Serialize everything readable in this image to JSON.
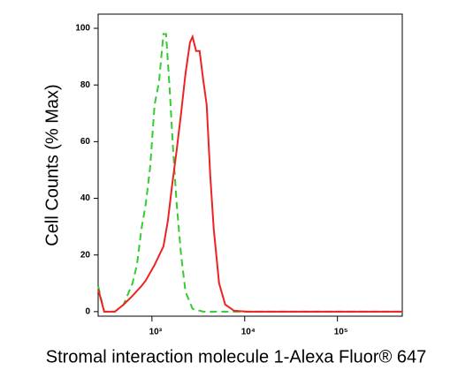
{
  "chart_data": {
    "type": "line",
    "x_label": "Stromal interaction molecule 1-Alexa Fluor® 647",
    "y_label": "Cell Counts (% Max)",
    "xscale": "log",
    "xlim": [
      263,
      500000
    ],
    "ylim": [
      -1.6,
      105
    ],
    "xticks": [
      {
        "value": 1000,
        "label": "10³"
      },
      {
        "value": 10000,
        "label": "10⁴"
      },
      {
        "value": 100000,
        "label": "10⁵"
      }
    ],
    "yticks": [
      0,
      20,
      40,
      60,
      80,
      100
    ],
    "series": [
      {
        "color": "#33cc33",
        "dash": "8,5",
        "x": [
          263,
          306,
          398,
          495,
          617,
          689,
          769,
          858,
          957,
          1068,
          1192,
          1330,
          1420,
          1550,
          1693,
          1848,
          2062,
          2301,
          2742,
          3565,
          10690,
          500000
        ],
        "values": [
          9,
          0,
          0,
          2.5,
          10,
          16.5,
          29,
          38,
          51,
          73,
          81,
          98,
          98,
          79,
          57,
          38,
          20,
          7,
          1,
          0,
          0,
          0
        ]
      },
      {
        "color": "#ee2222",
        "dash": null,
        "x": [
          263,
          306,
          398,
          495,
          617,
          769,
          858,
          1068,
          1330,
          1484,
          1656,
          1848,
          2062,
          2301,
          2570,
          2742,
          2993,
          3266,
          3565,
          3891,
          4253,
          4642,
          5297,
          6166,
          7691,
          10690,
          500000
        ],
        "values": [
          8,
          0,
          0,
          2.5,
          5.6,
          9,
          11,
          16.5,
          23,
          32,
          45,
          57,
          70,
          84,
          95,
          97,
          92,
          92,
          82,
          73,
          48,
          29,
          10,
          2.5,
          0.3,
          0,
          0
        ]
      }
    ]
  }
}
